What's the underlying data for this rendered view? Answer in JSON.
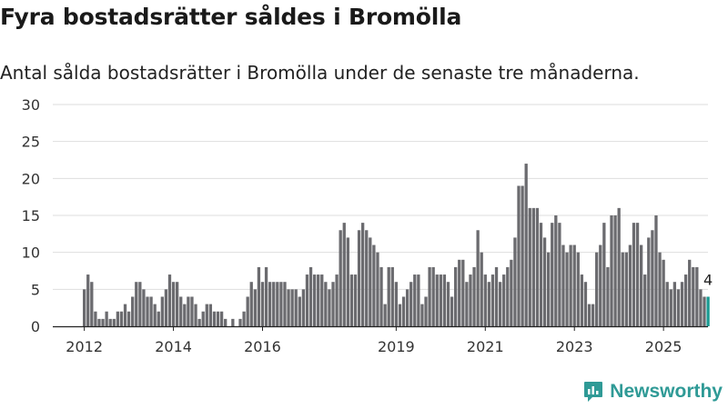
{
  "header": {
    "title": "Fyra bostadsrätter såldes i Bromölla",
    "subtitle": "Antal sålda bostadsrätter i Bromölla under de senaste tre månaderna."
  },
  "brand": {
    "name": "Newsworthy",
    "icon": "newsworthy-logo-icon",
    "color": "#2f9a96"
  },
  "chart_data": {
    "type": "bar",
    "title": "Fyra bostadsrätter såldes i Bromölla",
    "subtitle": "Antal sålda bostadsrätter i Bromölla under de senaste tre månaderna.",
    "xlabel": "",
    "ylabel": "",
    "ylim": [
      0,
      30
    ],
    "y_ticks": [
      0,
      5,
      10,
      15,
      20,
      25,
      30
    ],
    "grid": true,
    "x_tick_labels": [
      "2012",
      "2014",
      "2016",
      "2019",
      "2021",
      "2023",
      "2025"
    ],
    "x_tick_bar_index": [
      0,
      24,
      48,
      84,
      108,
      132,
      156
    ],
    "first_period": "2012-01",
    "last_period": "2025-10",
    "bar_color": "#6b6b6f",
    "highlight_color": "#1a9a92",
    "highlight_label": "4",
    "values": [
      5,
      7,
      6,
      2,
      1,
      1,
      2,
      1,
      1,
      2,
      2,
      3,
      2,
      4,
      6,
      6,
      5,
      4,
      4,
      3,
      2,
      4,
      5,
      7,
      6,
      6,
      4,
      3,
      4,
      4,
      3,
      1,
      2,
      3,
      3,
      2,
      2,
      2,
      1,
      0,
      1,
      0,
      1,
      2,
      4,
      6,
      5,
      8,
      6,
      8,
      6,
      6,
      6,
      6,
      6,
      5,
      5,
      5,
      4,
      5,
      7,
      8,
      7,
      7,
      7,
      6,
      5,
      6,
      7,
      13,
      14,
      12,
      7,
      7,
      13,
      14,
      13,
      12,
      11,
      10,
      8,
      3,
      8,
      8,
      6,
      3,
      4,
      5,
      6,
      7,
      7,
      3,
      4,
      8,
      8,
      7,
      7,
      7,
      6,
      4,
      8,
      9,
      9,
      6,
      7,
      8,
      13,
      10,
      7,
      6,
      7,
      8,
      6,
      7,
      8,
      9,
      12,
      19,
      19,
      22,
      16,
      16,
      16,
      14,
      12,
      10,
      14,
      15,
      14,
      11,
      10,
      11,
      11,
      10,
      7,
      6,
      3,
      3,
      10,
      11,
      14,
      8,
      15,
      15,
      16,
      10,
      10,
      11,
      14,
      14,
      11,
      7,
      12,
      13,
      15,
      10,
      9,
      6,
      5,
      6,
      5,
      6,
      7,
      9,
      8,
      8,
      5,
      4,
      4
    ]
  }
}
